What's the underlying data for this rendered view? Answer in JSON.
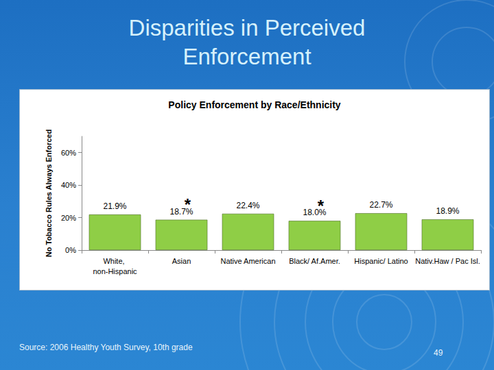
{
  "slide": {
    "title": "Disparities in Perceived Enforcement",
    "source": "Source: 2006 Healthy Youth Survey, 10th grade",
    "page": "49"
  },
  "chart_data": {
    "type": "bar",
    "title": "Policy Enforcement by Race/Ethnicity",
    "y_label": "No Tobacco Rules Always Enforced",
    "categories": [
      "White, non-Hispanic",
      "Asian",
      "Native American",
      "Black/ Af.Amer.",
      "Hispanic/ Latino",
      "Nativ.Haw / Pac Isl."
    ],
    "values": [
      21.9,
      18.7,
      22.4,
      18.0,
      22.7,
      18.9
    ],
    "value_labels": [
      "21.9%",
      "18.7%",
      "22.4%",
      "18.0%",
      "22.7%",
      "18.9%"
    ],
    "annotations": [
      {
        "category": "Asian",
        "text": "*"
      },
      {
        "category": "Black/ Af.Amer.",
        "text": "*"
      }
    ],
    "color": "#8fce46",
    "ylim": [
      0,
      70
    ],
    "yticks": [
      {
        "value": 0,
        "label": "0%"
      },
      {
        "value": 20,
        "label": "20%"
      },
      {
        "value": 40,
        "label": "40%"
      },
      {
        "value": 60,
        "label": "60%"
      }
    ],
    "grid": false,
    "data_labels": true
  }
}
